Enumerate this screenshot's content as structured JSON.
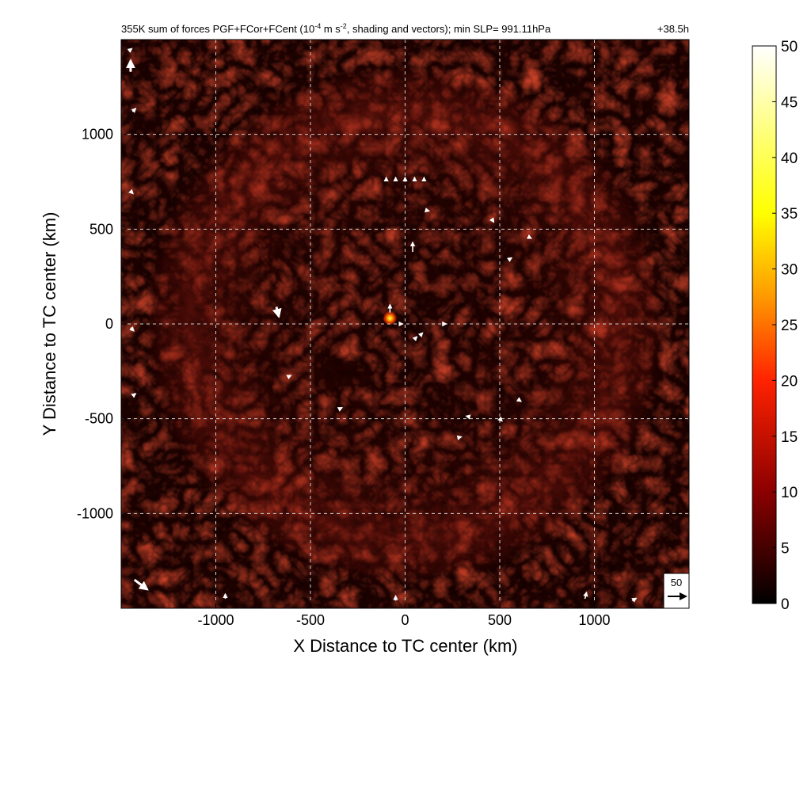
{
  "chart_data": {
    "type": "heatmap",
    "title_main": "355K sum of forces PGF+FCor+FCent (10",
    "title_exp": "-4",
    "title_mid": " m s",
    "title_exp2": "-2",
    "title_tail": ", shading and vectors); min SLP= 991.11hPa",
    "time_label": "+38.5h",
    "xlabel": "X Distance to TC center (km)",
    "ylabel": "Y Distance to TC center (km)",
    "xlim": [
      -1500,
      1500
    ],
    "ylim": [
      -1500,
      1500
    ],
    "x_ticks": [
      -1000,
      -500,
      0,
      500,
      1000
    ],
    "y_ticks": [
      -1000,
      -500,
      0,
      500,
      1000
    ],
    "x_tick_labels": [
      "-1000",
      "-500",
      "0",
      "500",
      "1000"
    ],
    "y_tick_labels": [
      "-1000",
      "-500",
      "0",
      "500",
      "1000"
    ],
    "grid": true,
    "colorbar": {
      "min": 0,
      "max": 50,
      "ticks": [
        0,
        5,
        10,
        15,
        20,
        25,
        30,
        35,
        40,
        45,
        50
      ],
      "tick_labels": [
        "0",
        "5",
        "10",
        "15",
        "20",
        "25",
        "30",
        "35",
        "40",
        "45",
        "50"
      ],
      "colormap": [
        "#000000",
        "#8b0000",
        "#ff2200",
        "#ff9900",
        "#ffff00",
        "#ffffff"
      ]
    },
    "reference_vector": {
      "label": "50",
      "magnitude": 50
    },
    "hotspot": {
      "x": -80,
      "y": 30,
      "value": 28
    },
    "vectors": [
      {
        "x": 40,
        "y": 380,
        "u": 0,
        "v": 12
      },
      {
        "x": -80,
        "y": 60,
        "u": 0,
        "v": 10
      },
      {
        "x": -680,
        "y": 90,
        "u": 3,
        "v": -12
      },
      {
        "x": -1450,
        "y": 1330,
        "u": 0,
        "v": 14
      },
      {
        "x": -1460,
        "y": 1440,
        "u": 4,
        "v": 3
      },
      {
        "x": -1440,
        "y": 1120,
        "u": 4,
        "v": 4
      },
      {
        "x": -1450,
        "y": 700,
        "u": 3,
        "v": -3
      },
      {
        "x": -1450,
        "y": -20,
        "u": 4,
        "v": -4
      },
      {
        "x": -1440,
        "y": -380,
        "u": 4,
        "v": 3
      },
      {
        "x": -1430,
        "y": -1350,
        "u": 16,
        "v": -12
      },
      {
        "x": -950,
        "y": -1450,
        "u": 0,
        "v": 6
      },
      {
        "x": -50,
        "y": -1460,
        "u": 0,
        "v": 6
      },
      {
        "x": 950,
        "y": -1450,
        "u": 2,
        "v": 8
      },
      {
        "x": 1200,
        "y": -1460,
        "u": 5,
        "v": 3
      },
      {
        "x": -100,
        "y": 760,
        "u": 0,
        "v": 3
      },
      {
        "x": -50,
        "y": 760,
        "u": 0,
        "v": 3
      },
      {
        "x": 0,
        "y": 760,
        "u": 0,
        "v": 3
      },
      {
        "x": 50,
        "y": 760,
        "u": 0,
        "v": 3
      },
      {
        "x": 100,
        "y": 760,
        "u": 0,
        "v": 3
      },
      {
        "x": 110,
        "y": 600,
        "u": 4,
        "v": -1
      },
      {
        "x": 460,
        "y": 550,
        "u": 2,
        "v": -3
      },
      {
        "x": 650,
        "y": 460,
        "u": 4,
        "v": -2
      },
      {
        "x": 550,
        "y": 340,
        "u": 3,
        "v": 2
      },
      {
        "x": 200,
        "y": 0,
        "u": 4,
        "v": 0
      },
      {
        "x": 80,
        "y": -60,
        "u": 3,
        "v": 3
      },
      {
        "x": 50,
        "y": -80,
        "u": 3,
        "v": 3
      },
      {
        "x": -620,
        "y": -280,
        "u": 4,
        "v": 2
      },
      {
        "x": -350,
        "y": -450,
        "u": 4,
        "v": 2
      },
      {
        "x": 340,
        "y": -490,
        "u": -4,
        "v": 1
      },
      {
        "x": 500,
        "y": -500,
        "u": 3,
        "v": -3
      },
      {
        "x": 600,
        "y": -400,
        "u": 3,
        "v": -2
      },
      {
        "x": 280,
        "y": -600,
        "u": 4,
        "v": 1
      },
      {
        "x": -30,
        "y": 0,
        "u": 4,
        "v": 0
      }
    ]
  }
}
